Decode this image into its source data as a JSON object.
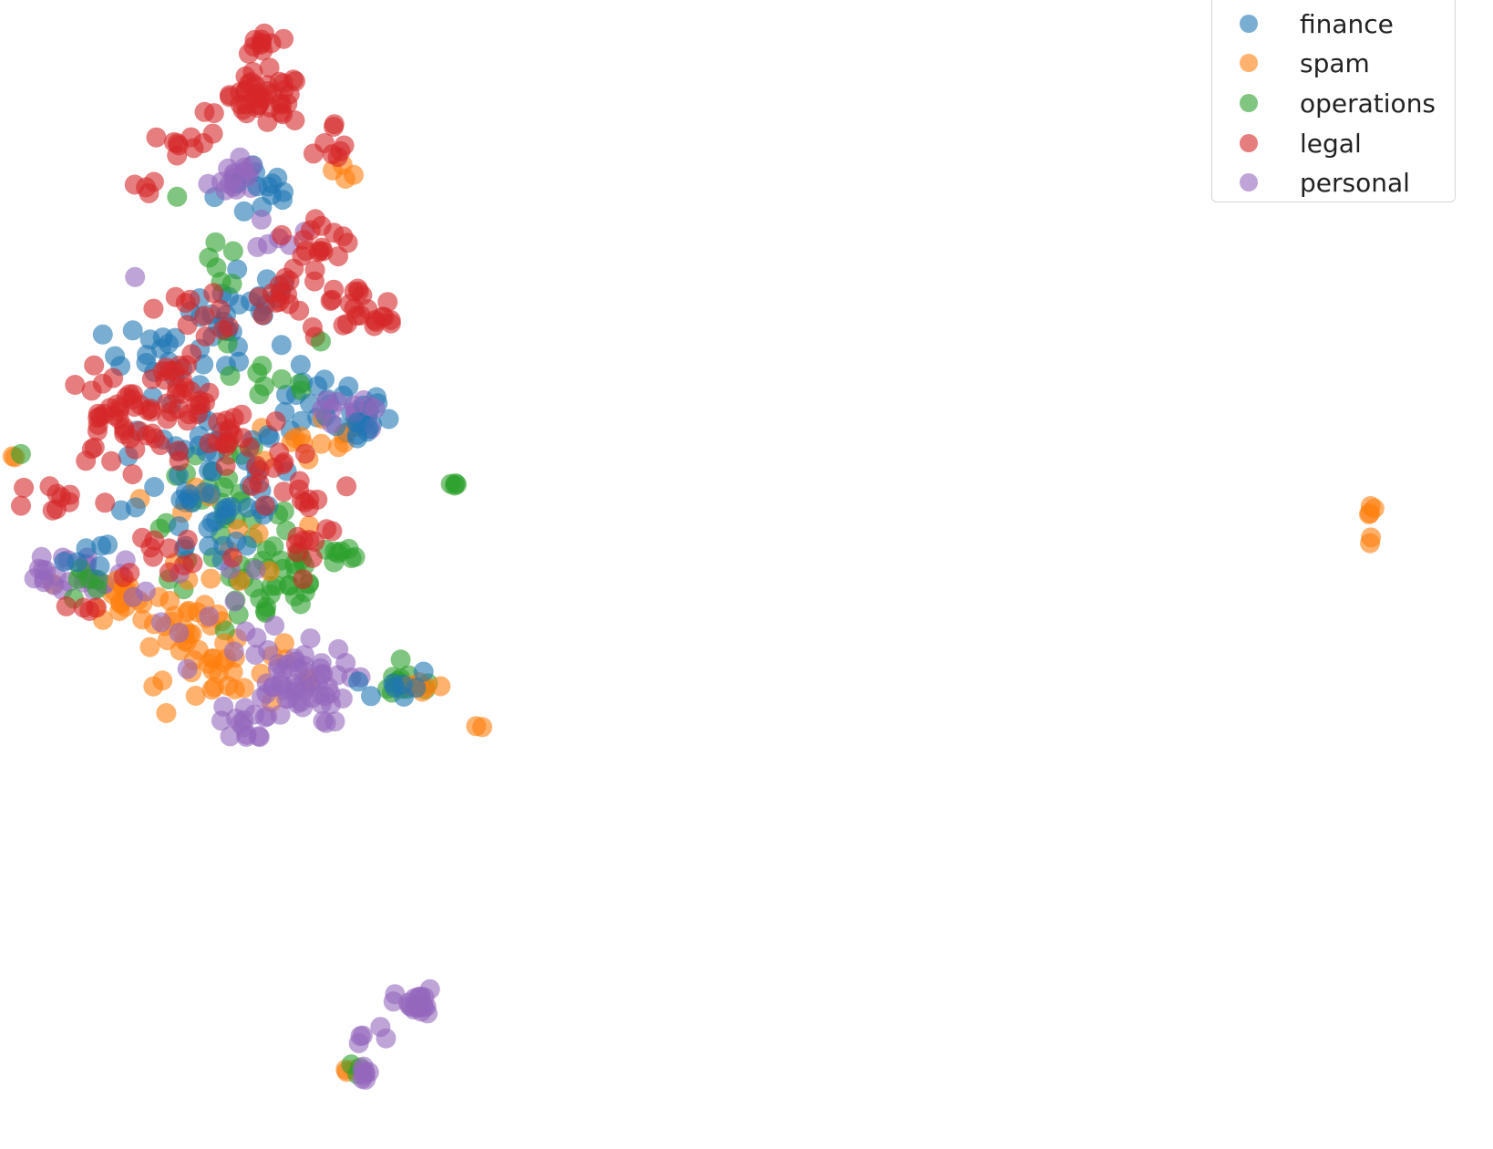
{
  "chart_data": {
    "type": "scatter",
    "title": "",
    "xlabel": "",
    "ylabel": "",
    "axes_visible": false,
    "grid": false,
    "legend_placement": "top-right",
    "xlim": [
      0,
      100
    ],
    "ylim": [
      0,
      100
    ],
    "series": [
      {
        "name": "finance",
        "color": "#1f77b4",
        "clusters": [
          {
            "cx": 18,
            "cy": 85,
            "sx": 1.6,
            "sy": 1.5,
            "n": 14
          },
          {
            "cx": 17,
            "cy": 74,
            "sx": 2.0,
            "sy": 1.8,
            "n": 24
          },
          {
            "cx": 12,
            "cy": 70,
            "sx": 2.4,
            "sy": 1.4,
            "n": 22
          },
          {
            "cx": 22,
            "cy": 65,
            "sx": 2.2,
            "sy": 1.6,
            "n": 20
          },
          {
            "cx": 14,
            "cy": 60,
            "sx": 3.0,
            "sy": 2.8,
            "n": 36
          },
          {
            "cx": 24,
            "cy": 64,
            "sx": 1.2,
            "sy": 1.4,
            "n": 16
          },
          {
            "cx": 15,
            "cy": 55,
            "sx": 2.6,
            "sy": 2.2,
            "n": 22
          },
          {
            "cx": 7,
            "cy": 52,
            "sx": 1.2,
            "sy": 1.0,
            "n": 6
          },
          {
            "cx": 27,
            "cy": 40,
            "sx": 1.4,
            "sy": 0.8,
            "n": 8
          }
        ]
      },
      {
        "name": "spam",
        "color": "#ff7f0e",
        "clusters": [
          {
            "cx": 8.5,
            "cy": 48,
            "sx": 1.4,
            "sy": 1.0,
            "n": 18
          },
          {
            "cx": 13,
            "cy": 45,
            "sx": 1.8,
            "sy": 2.0,
            "n": 30
          },
          {
            "cx": 15,
            "cy": 41,
            "sx": 2.2,
            "sy": 1.6,
            "n": 22
          },
          {
            "cx": 22,
            "cy": 63,
            "sx": 1.4,
            "sy": 1.2,
            "n": 12
          },
          {
            "cx": 24,
            "cy": 87,
            "sx": 0.8,
            "sy": 0.8,
            "n": 4
          },
          {
            "cx": 15,
            "cy": 51,
            "sx": 3.5,
            "sy": 4.0,
            "n": 14
          },
          {
            "cx": 29,
            "cy": 40,
            "sx": 0.9,
            "sy": 0.5,
            "n": 6
          },
          {
            "cx": 24,
            "cy": 5,
            "sx": 0.3,
            "sy": 0.3,
            "n": 3
          },
          {
            "cx": 1,
            "cy": 61,
            "sx": 0.3,
            "sy": 0.3,
            "n": 2
          },
          {
            "cx": 33,
            "cy": 36,
            "sx": 0.2,
            "sy": 0.2,
            "n": 2
          },
          {
            "cx": 94,
            "cy": 56,
            "sx": 0.15,
            "sy": 1.2,
            "n": 6
          }
        ]
      },
      {
        "name": "operations",
        "color": "#2ca02c",
        "clusters": [
          {
            "cx": 15,
            "cy": 55,
            "sx": 2.5,
            "sy": 3.0,
            "n": 36
          },
          {
            "cx": 19,
            "cy": 49,
            "sx": 1.8,
            "sy": 2.2,
            "n": 28
          },
          {
            "cx": 23,
            "cy": 52,
            "sx": 1.2,
            "sy": 0.8,
            "n": 10
          },
          {
            "cx": 28,
            "cy": 40,
            "sx": 1.2,
            "sy": 0.7,
            "n": 14
          },
          {
            "cx": 15,
            "cy": 78,
            "sx": 1.0,
            "sy": 1.0,
            "n": 6
          },
          {
            "cx": 18,
            "cy": 68,
            "sx": 2.5,
            "sy": 2.0,
            "n": 10
          },
          {
            "cx": 31,
            "cy": 58,
            "sx": 0.2,
            "sy": 0.2,
            "n": 4
          },
          {
            "cx": 6,
            "cy": 49,
            "sx": 1.0,
            "sy": 0.8,
            "n": 6
          },
          {
            "cx": 1.5,
            "cy": 61,
            "sx": 0.2,
            "sy": 0.2,
            "n": 1
          },
          {
            "cx": 12,
            "cy": 84,
            "sx": 0.2,
            "sy": 0.2,
            "n": 1
          },
          {
            "cx": 24.5,
            "cy": 5,
            "sx": 0.3,
            "sy": 0.4,
            "n": 3
          }
        ]
      },
      {
        "name": "legal",
        "color": "#d62728",
        "clusters": [
          {
            "cx": 18,
            "cy": 93,
            "sx": 1.5,
            "sy": 1.2,
            "n": 42
          },
          {
            "cx": 18,
            "cy": 98,
            "sx": 0.6,
            "sy": 0.8,
            "n": 10
          },
          {
            "cx": 13,
            "cy": 89,
            "sx": 0.8,
            "sy": 0.6,
            "n": 8
          },
          {
            "cx": 10,
            "cy": 85,
            "sx": 0.5,
            "sy": 0.3,
            "n": 4
          },
          {
            "cx": 22,
            "cy": 81,
            "sx": 1.2,
            "sy": 1.2,
            "n": 14
          },
          {
            "cx": 20,
            "cy": 76,
            "sx": 1.2,
            "sy": 1.2,
            "n": 16
          },
          {
            "cx": 24,
            "cy": 74,
            "sx": 1.8,
            "sy": 1.2,
            "n": 18
          },
          {
            "cx": 14,
            "cy": 74,
            "sx": 1.5,
            "sy": 1.0,
            "n": 12
          },
          {
            "cx": 8,
            "cy": 64,
            "sx": 1.8,
            "sy": 2.2,
            "n": 44
          },
          {
            "cx": 12,
            "cy": 66,
            "sx": 1.6,
            "sy": 1.8,
            "n": 22
          },
          {
            "cx": 16,
            "cy": 62,
            "sx": 1.8,
            "sy": 2.2,
            "n": 22
          },
          {
            "cx": 20,
            "cy": 58,
            "sx": 2.2,
            "sy": 2.2,
            "n": 16
          },
          {
            "cx": 4,
            "cy": 57,
            "sx": 1.5,
            "sy": 0.8,
            "n": 10
          },
          {
            "cx": 12,
            "cy": 52,
            "sx": 2.5,
            "sy": 1.4,
            "n": 12
          },
          {
            "cx": 21,
            "cy": 53,
            "sx": 1.2,
            "sy": 1.2,
            "n": 10
          },
          {
            "cx": 26.5,
            "cy": 73,
            "sx": 0.7,
            "sy": 0.3,
            "n": 6
          },
          {
            "cx": 23,
            "cy": 88,
            "sx": 0.8,
            "sy": 1.5,
            "n": 8
          },
          {
            "cx": 6,
            "cy": 47,
            "sx": 0.5,
            "sy": 0.5,
            "n": 4
          }
        ]
      },
      {
        "name": "personal",
        "color": "#9467bd",
        "clusters": [
          {
            "cx": 16,
            "cy": 86,
            "sx": 0.8,
            "sy": 1.0,
            "n": 18
          },
          {
            "cx": 19,
            "cy": 81,
            "sx": 0.8,
            "sy": 0.8,
            "n": 6
          },
          {
            "cx": 6,
            "cy": 50.5,
            "sx": 1.2,
            "sy": 1.0,
            "n": 20
          },
          {
            "cx": 3,
            "cy": 50,
            "sx": 0.6,
            "sy": 0.4,
            "n": 6
          },
          {
            "cx": 20,
            "cy": 40,
            "sx": 2.0,
            "sy": 1.8,
            "n": 54
          },
          {
            "cx": 17,
            "cy": 36.5,
            "sx": 1.0,
            "sy": 0.8,
            "n": 16
          },
          {
            "cx": 24,
            "cy": 65,
            "sx": 1.0,
            "sy": 1.4,
            "n": 12
          },
          {
            "cx": 14,
            "cy": 47,
            "sx": 2.5,
            "sy": 2.5,
            "n": 14
          },
          {
            "cx": 9,
            "cy": 77,
            "sx": 0.2,
            "sy": 0.2,
            "n": 1
          },
          {
            "cx": 28.5,
            "cy": 11,
            "sx": 0.7,
            "sy": 0.7,
            "n": 22
          },
          {
            "cx": 25.5,
            "cy": 7.5,
            "sx": 0.7,
            "sy": 0.7,
            "n": 5
          },
          {
            "cx": 25,
            "cy": 5,
            "sx": 0.3,
            "sy": 0.5,
            "n": 8
          }
        ]
      }
    ]
  }
}
